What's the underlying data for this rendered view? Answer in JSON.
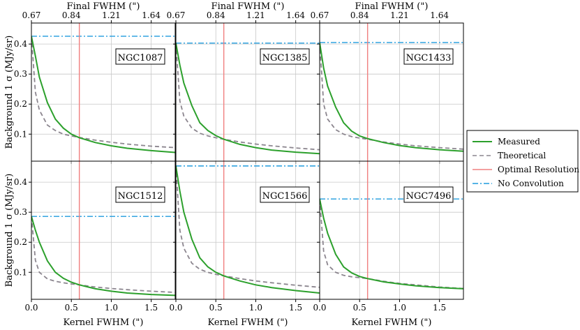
{
  "figure": {
    "ylabel": "Background 1 σ (MJy/sr)",
    "xlabel": "Kernel FWHM (\")",
    "top_xlabel": "Final FWHM (\")",
    "top_tick_labels": [
      "0.67",
      "0.84",
      "1.21",
      "1.64"
    ],
    "top_tick_positions_kernel": [
      0.0,
      0.5,
      1.0,
      1.5
    ]
  },
  "legend": {
    "placement": "right",
    "items": [
      {
        "label": "Measured",
        "color": "#2ca02c",
        "style": "solid"
      },
      {
        "label": "Theoretical",
        "color": "#8c868f",
        "style": "dashed"
      },
      {
        "label": "Optimal Resolution",
        "color": "#f08080",
        "style": "solid"
      },
      {
        "label": "No Convolution",
        "color": "#1f9bde",
        "style": "dashdot"
      }
    ]
  },
  "chart_data": [
    {
      "type": "line",
      "title": "NGC1087",
      "xlim": [
        0,
        1.8
      ],
      "ylim": [
        0.01,
        0.47
      ],
      "xticks": [
        0.0,
        0.5,
        1.0,
        1.5
      ],
      "yticks": [
        0.1,
        0.2,
        0.3,
        0.4
      ],
      "optimal_resolution": 0.6,
      "no_convolution": 0.426,
      "series": [
        {
          "name": "Measured",
          "x": [
            0,
            0.05,
            0.1,
            0.2,
            0.3,
            0.4,
            0.5,
            0.6,
            0.8,
            1.0,
            1.2,
            1.5,
            1.8
          ],
          "y": [
            0.426,
            0.36,
            0.29,
            0.205,
            0.15,
            0.12,
            0.1,
            0.088,
            0.072,
            0.061,
            0.053,
            0.045,
            0.039
          ]
        },
        {
          "name": "Theoretical",
          "x": [
            0,
            0.05,
            0.1,
            0.2,
            0.3,
            0.4,
            0.5,
            0.6,
            0.8,
            1.0,
            1.2,
            1.5,
            1.8
          ],
          "y": [
            0.426,
            0.24,
            0.18,
            0.13,
            0.112,
            0.1,
            0.094,
            0.089,
            0.08,
            0.073,
            0.067,
            0.06,
            0.055
          ]
        }
      ]
    },
    {
      "type": "line",
      "title": "NGC1385",
      "xlim": [
        0,
        1.8
      ],
      "ylim": [
        0.01,
        0.47
      ],
      "xticks": [
        0.0,
        0.5,
        1.0,
        1.5
      ],
      "yticks": [
        0.1,
        0.2,
        0.3,
        0.4
      ],
      "optimal_resolution": 0.6,
      "no_convolution": 0.403,
      "series": [
        {
          "name": "Measured",
          "x": [
            0,
            0.05,
            0.1,
            0.2,
            0.3,
            0.4,
            0.5,
            0.6,
            0.8,
            1.0,
            1.2,
            1.5,
            1.8
          ],
          "y": [
            0.403,
            0.33,
            0.27,
            0.195,
            0.138,
            0.112,
            0.095,
            0.083,
            0.066,
            0.055,
            0.047,
            0.04,
            0.035
          ]
        },
        {
          "name": "Theoretical",
          "x": [
            0,
            0.05,
            0.1,
            0.2,
            0.3,
            0.4,
            0.5,
            0.6,
            0.8,
            1.0,
            1.2,
            1.5,
            1.8
          ],
          "y": [
            0.403,
            0.21,
            0.16,
            0.12,
            0.103,
            0.094,
            0.088,
            0.083,
            0.074,
            0.067,
            0.061,
            0.054,
            0.048
          ]
        }
      ]
    },
    {
      "type": "line",
      "title": "NGC1433",
      "xlim": [
        0,
        1.8
      ],
      "ylim": [
        0.01,
        0.47
      ],
      "xticks": [
        0.0,
        0.5,
        1.0,
        1.5
      ],
      "yticks": [
        0.1,
        0.2,
        0.3,
        0.4
      ],
      "optimal_resolution": 0.6,
      "no_convolution": 0.405,
      "series": [
        {
          "name": "Measured",
          "x": [
            0,
            0.05,
            0.1,
            0.2,
            0.3,
            0.4,
            0.5,
            0.6,
            0.8,
            1.0,
            1.2,
            1.5,
            1.8
          ],
          "y": [
            0.405,
            0.32,
            0.26,
            0.19,
            0.138,
            0.11,
            0.094,
            0.085,
            0.072,
            0.062,
            0.055,
            0.048,
            0.043
          ]
        },
        {
          "name": "Theoretical",
          "x": [
            0,
            0.05,
            0.1,
            0.2,
            0.3,
            0.4,
            0.5,
            0.6,
            0.8,
            1.0,
            1.2,
            1.5,
            1.8
          ],
          "y": [
            0.405,
            0.2,
            0.15,
            0.115,
            0.1,
            0.092,
            0.087,
            0.083,
            0.074,
            0.067,
            0.061,
            0.055,
            0.05
          ]
        }
      ]
    },
    {
      "type": "line",
      "title": "NGC1512",
      "xlim": [
        0,
        1.8
      ],
      "ylim": [
        0.01,
        0.47
      ],
      "xticks": [
        0.0,
        0.5,
        1.0,
        1.5
      ],
      "yticks": [
        0.1,
        0.2,
        0.3,
        0.4
      ],
      "optimal_resolution": 0.6,
      "no_convolution": 0.286,
      "series": [
        {
          "name": "Measured",
          "x": [
            0,
            0.05,
            0.1,
            0.2,
            0.3,
            0.4,
            0.5,
            0.6,
            0.8,
            1.0,
            1.2,
            1.5,
            1.8
          ],
          "y": [
            0.286,
            0.24,
            0.2,
            0.138,
            0.1,
            0.08,
            0.067,
            0.058,
            0.045,
            0.037,
            0.031,
            0.026,
            0.023
          ]
        },
        {
          "name": "Theoretical",
          "x": [
            0,
            0.05,
            0.1,
            0.2,
            0.3,
            0.4,
            0.5,
            0.6,
            0.8,
            1.0,
            1.2,
            1.5,
            1.8
          ],
          "y": [
            0.286,
            0.14,
            0.1,
            0.078,
            0.07,
            0.065,
            0.061,
            0.058,
            0.051,
            0.046,
            0.042,
            0.037,
            0.033
          ]
        }
      ]
    },
    {
      "type": "line",
      "title": "NGC1566",
      "xlim": [
        0,
        1.8
      ],
      "ylim": [
        0.01,
        0.47
      ],
      "xticks": [
        0.0,
        0.5,
        1.0,
        1.5
      ],
      "yticks": [
        0.1,
        0.2,
        0.3,
        0.4
      ],
      "optimal_resolution": 0.6,
      "no_convolution": 0.454,
      "series": [
        {
          "name": "Measured",
          "x": [
            0,
            0.05,
            0.1,
            0.2,
            0.3,
            0.4,
            0.5,
            0.6,
            0.8,
            1.0,
            1.2,
            1.5,
            1.8
          ],
          "y": [
            0.454,
            0.37,
            0.3,
            0.21,
            0.148,
            0.118,
            0.1,
            0.088,
            0.071,
            0.058,
            0.049,
            0.039,
            0.031
          ]
        },
        {
          "name": "Theoretical",
          "x": [
            0,
            0.05,
            0.1,
            0.2,
            0.3,
            0.4,
            0.5,
            0.6,
            0.8,
            1.0,
            1.2,
            1.5,
            1.8
          ],
          "y": [
            0.454,
            0.24,
            0.18,
            0.13,
            0.11,
            0.1,
            0.093,
            0.088,
            0.079,
            0.071,
            0.065,
            0.057,
            0.05
          ]
        }
      ]
    },
    {
      "type": "line",
      "title": "NGC7496",
      "xlim": [
        0,
        1.8
      ],
      "ylim": [
        0.01,
        0.47
      ],
      "xticks": [
        0.0,
        0.5,
        1.0,
        1.5
      ],
      "yticks": [
        0.1,
        0.2,
        0.3,
        0.4
      ],
      "optimal_resolution": 0.6,
      "no_convolution": 0.344,
      "series": [
        {
          "name": "Measured",
          "x": [
            0,
            0.05,
            0.1,
            0.2,
            0.3,
            0.4,
            0.5,
            0.6,
            0.8,
            1.0,
            1.2,
            1.5,
            1.8
          ],
          "y": [
            0.344,
            0.28,
            0.23,
            0.16,
            0.118,
            0.098,
            0.086,
            0.079,
            0.068,
            0.061,
            0.055,
            0.049,
            0.045
          ]
        },
        {
          "name": "Theoretical",
          "x": [
            0,
            0.05,
            0.1,
            0.2,
            0.3,
            0.4,
            0.5,
            0.6,
            0.8,
            1.0,
            1.2,
            1.5,
            1.8
          ],
          "y": [
            0.344,
            0.17,
            0.125,
            0.1,
            0.09,
            0.085,
            0.082,
            0.079,
            0.07,
            0.063,
            0.058,
            0.051,
            0.046
          ]
        }
      ]
    }
  ]
}
